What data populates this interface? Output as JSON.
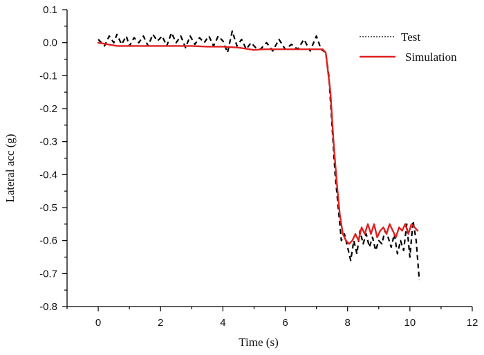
{
  "chart_data": {
    "type": "line",
    "title": "",
    "xlabel": "Time (s)",
    "ylabel": "Lateral acc (g)",
    "xlim": [
      -1,
      12
    ],
    "ylim": [
      -0.8,
      0.1
    ],
    "xticks": [
      0,
      2,
      4,
      6,
      8,
      10,
      12
    ],
    "yticks": [
      0.1,
      0.0,
      -0.1,
      -0.2,
      -0.3,
      -0.4,
      -0.5,
      -0.6,
      -0.7,
      -0.8
    ],
    "ytick_labels": [
      "0.1",
      "0.0",
      "-0.1",
      "-0.2",
      "-0.3",
      "-0.4",
      "-0.5",
      "-0.6",
      "-0.7",
      "-0.8"
    ],
    "legend_position": "top-right",
    "series": [
      {
        "name": "Test",
        "style": "dashed",
        "color": "#000000",
        "x": [
          0.0,
          0.2,
          0.35,
          0.5,
          0.6,
          0.75,
          0.9,
          1.0,
          1.15,
          1.3,
          1.45,
          1.6,
          1.75,
          1.9,
          2.05,
          2.2,
          2.35,
          2.5,
          2.65,
          2.8,
          2.95,
          3.1,
          3.25,
          3.4,
          3.55,
          3.7,
          3.85,
          4.0,
          4.15,
          4.3,
          4.45,
          4.6,
          4.75,
          4.9,
          5.05,
          5.2,
          5.4,
          5.6,
          5.8,
          6.0,
          6.2,
          6.4,
          6.6,
          6.8,
          7.0,
          7.15,
          7.3,
          7.4,
          7.5,
          7.6,
          7.7,
          7.8,
          7.9,
          8.0,
          8.1,
          8.2,
          8.3,
          8.4,
          8.5,
          8.6,
          8.7,
          8.8,
          8.9,
          9.0,
          9.1,
          9.2,
          9.3,
          9.4,
          9.5,
          9.6,
          9.7,
          9.8,
          9.9,
          10.0,
          10.1,
          10.2,
          10.3
        ],
        "y": [
          0.01,
          -0.01,
          0.02,
          0.0,
          0.025,
          -0.005,
          0.02,
          -0.01,
          0.015,
          0.0,
          0.02,
          -0.01,
          0.025,
          0.005,
          0.02,
          -0.01,
          0.03,
          0.0,
          0.02,
          -0.015,
          0.02,
          -0.005,
          0.015,
          0.0,
          0.02,
          -0.01,
          0.02,
          0.005,
          -0.03,
          0.035,
          -0.01,
          0.01,
          -0.02,
          0.0,
          -0.015,
          -0.02,
          0.0,
          -0.025,
          0.01,
          -0.02,
          -0.005,
          -0.02,
          0.01,
          -0.025,
          0.02,
          -0.02,
          -0.03,
          -0.1,
          -0.25,
          -0.4,
          -0.5,
          -0.6,
          -0.58,
          -0.62,
          -0.66,
          -0.6,
          -0.64,
          -0.57,
          -0.61,
          -0.58,
          -0.62,
          -0.59,
          -0.63,
          -0.6,
          -0.61,
          -0.57,
          -0.59,
          -0.62,
          -0.58,
          -0.64,
          -0.6,
          -0.63,
          -0.55,
          -0.65,
          -0.54,
          -0.6,
          -0.72
        ]
      },
      {
        "name": "Simulation",
        "style": "solid",
        "color": "#e02020",
        "x": [
          0.0,
          0.3,
          0.6,
          1.0,
          1.5,
          2.0,
          2.5,
          3.0,
          3.5,
          4.0,
          4.5,
          5.0,
          5.3,
          5.6,
          6.0,
          6.5,
          7.0,
          7.2,
          7.3,
          7.45,
          7.55,
          7.65,
          7.75,
          7.85,
          7.95,
          8.05,
          8.15,
          8.25,
          8.35,
          8.45,
          8.55,
          8.65,
          8.75,
          8.85,
          8.95,
          9.05,
          9.15,
          9.25,
          9.35,
          9.45,
          9.55,
          9.65,
          9.75,
          9.85,
          9.95,
          10.05,
          10.15,
          10.25
        ],
        "y": [
          0.0,
          -0.005,
          -0.01,
          -0.01,
          -0.01,
          -0.01,
          -0.01,
          -0.01,
          -0.012,
          -0.012,
          -0.015,
          -0.022,
          -0.02,
          -0.02,
          -0.02,
          -0.02,
          -0.02,
          -0.02,
          -0.03,
          -0.15,
          -0.3,
          -0.42,
          -0.52,
          -0.58,
          -0.6,
          -0.61,
          -0.6,
          -0.58,
          -0.6,
          -0.56,
          -0.58,
          -0.55,
          -0.58,
          -0.55,
          -0.59,
          -0.57,
          -0.56,
          -0.58,
          -0.55,
          -0.57,
          -0.59,
          -0.56,
          -0.57,
          -0.55,
          -0.58,
          -0.55,
          -0.56,
          -0.57
        ]
      }
    ]
  }
}
